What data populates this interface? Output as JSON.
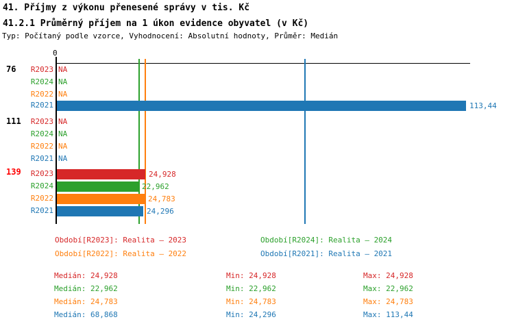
{
  "header": {
    "title": "41. Příjmy z výkonu přenesené správy v tis. Kč",
    "subtitle": "41.2.1 Průměrný příjem na 1 úkon evidence obyvatel (v Kč)",
    "meta": "Typ: Počítaný podle vzorce, Vyhodnocení: Absolutní hodnoty, Průměr: Medián"
  },
  "colors": {
    "R2023": "#d62728",
    "R2024": "#2ca02c",
    "R2022": "#ff7f0e",
    "R2021": "#1f77b4",
    "highlight_group": "#ff0000",
    "group_label": "#000000",
    "axis": "#000000"
  },
  "chart_data": {
    "type": "bar",
    "orientation": "horizontal",
    "title": "41.2.1 Průměrný příjem na 1 úkon evidence obyvatel (v Kč)",
    "xlabel": "",
    "ylabel": "",
    "xlim": [
      0,
      114.5
    ],
    "zero_tick_label": "0",
    "na_text": "NA",
    "groups": [
      {
        "label": "76",
        "highlight": false,
        "rows": [
          {
            "year": "R2023",
            "value": null,
            "display": "NA"
          },
          {
            "year": "R2024",
            "value": null,
            "display": "NA"
          },
          {
            "year": "R2022",
            "value": null,
            "display": "NA"
          },
          {
            "year": "R2021",
            "value": 113.44,
            "display": "113,44"
          }
        ]
      },
      {
        "label": "111",
        "highlight": false,
        "rows": [
          {
            "year": "R2023",
            "value": null,
            "display": "NA"
          },
          {
            "year": "R2024",
            "value": null,
            "display": "NA"
          },
          {
            "year": "R2022",
            "value": null,
            "display": "NA"
          },
          {
            "year": "R2021",
            "value": null,
            "display": "NA"
          }
        ]
      },
      {
        "label": "139",
        "highlight": true,
        "rows": [
          {
            "year": "R2023",
            "value": 24.928,
            "display": "24,928"
          },
          {
            "year": "R2024",
            "value": 22.962,
            "display": "22,962"
          },
          {
            "year": "R2022",
            "value": 24.783,
            "display": "24,783"
          },
          {
            "year": "R2021",
            "value": 24.296,
            "display": "24,296"
          }
        ]
      }
    ],
    "median_lines": [
      {
        "year": "R2023",
        "value": 24.928
      },
      {
        "year": "R2024",
        "value": 22.962
      },
      {
        "year": "R2022",
        "value": 24.783
      },
      {
        "year": "R2021",
        "value": 68.868
      }
    ]
  },
  "legend": [
    {
      "year": "R2023",
      "label": "Období[R2023]: Realita – 2023"
    },
    {
      "year": "R2024",
      "label": "Období[R2024]: Realita – 2024"
    },
    {
      "year": "R2022",
      "label": "Období[R2022]: Realita – 2022"
    },
    {
      "year": "R2021",
      "label": "Období[R2021]: Realita – 2021"
    }
  ],
  "stats_labels": {
    "median": "Medián:",
    "min": "Min:",
    "max": "Max:"
  },
  "stats": [
    {
      "year": "R2023",
      "median": "24,928",
      "min": "24,928",
      "max": "24,928"
    },
    {
      "year": "R2024",
      "median": "22,962",
      "min": "22,962",
      "max": "22,962"
    },
    {
      "year": "R2022",
      "median": "24,783",
      "min": "24,783",
      "max": "24,783"
    },
    {
      "year": "R2021",
      "median": "68,868",
      "min": "24,296",
      "max": "113,44"
    }
  ]
}
